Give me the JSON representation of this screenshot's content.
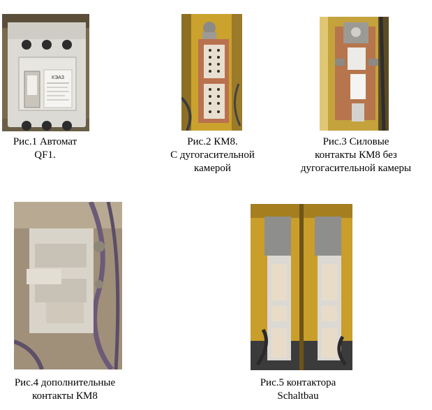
{
  "figures": [
    {
      "photo": "circuit-breaker-photo",
      "caption_lines": [
        "Рис.1 Автомат",
        "QF1."
      ]
    },
    {
      "photo": "contactor-km8-photo",
      "caption_lines": [
        "Рис.2 КМ8.",
        "С дугогасительной",
        "камерой"
      ]
    },
    {
      "photo": "power-contacts-photo",
      "caption_lines": [
        "Рис.3 Силовые",
        "контакты КМ8 без",
        "дугогасительной камеры"
      ]
    },
    {
      "photo": "auxiliary-contacts-photo",
      "caption_lines": [
        "Рис.4 дополнительные",
        "контакты КМ8"
      ]
    },
    {
      "photo": "schaltbau-contactors-photo",
      "caption_lines": [
        "Рис.5 контактора",
        "Schaltbau"
      ]
    }
  ],
  "breaker_label": {
    "brand": "КЭАЗ"
  },
  "colors": {
    "background": "#ffffff",
    "text": "#000000",
    "panel_yellow": "#c9a227",
    "copper": "#b8704a",
    "grey_housing": "#d8d4cc"
  }
}
